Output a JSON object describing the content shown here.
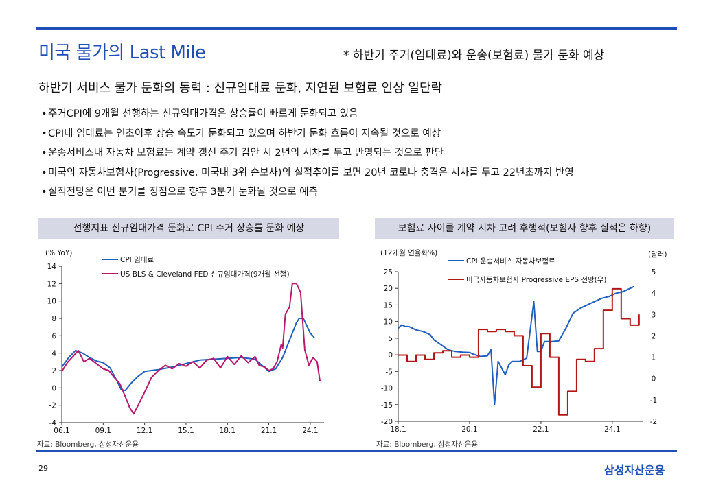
{
  "title": "미국 물가의 Last Mile",
  "subnote": "* 하반기 주거(임대료)와 운송(보험료) 물가 둔화 예상",
  "subtitle": "하반기 서비스 물가 둔화의 동력 : 신규임대료 둔화, 지연된 보험료 인상 일단락",
  "bullets": [
    "주거CPI에 9개월 선행하는 신규임대가격은  상승률이 빠르게 둔화되고 있음",
    "CPI내 임대료는 연초이후 상승 속도가 둔화되고 있으며 하반기 둔화 흐름이 지속될 것으로 예상",
    "운송서비스내 자동차 보험료는 계약 갱신 주기 감안 시 2년의 시차를 두고 반영되는 것으로 판단",
    "미국의 자동차보험사(Progressive,  미국내 3위 손보사)의 실적추이를 보면 20년 코로나 충격은 시차를 두고 22년초까지 반영",
    "실적전망은  이번 분기를 정점으로 향후 3분기 둔화될 것으로 예측"
  ],
  "left_panel": {
    "header": "선행지표 신규임대가격 둔화로 CPI 주거 상승률 둔화 예상",
    "source": "자료: Bloomberg, 삼성자산운용"
  },
  "right_panel": {
    "header": "보험료 사이클 계약 시차 고려 후행적(보험사 향후 실적은 하향)",
    "source": "자료: Bloomberg, 삼성자산운용"
  },
  "page_number": "29",
  "logo": "삼성자산운용",
  "chart_data": [
    {
      "type": "line",
      "ylabel": "(% YoY)",
      "ylim": [
        -4,
        14
      ],
      "yticks": [
        "14",
        "12",
        "10",
        "8",
        "6",
        "4",
        "2",
        "0",
        "-2",
        "-4"
      ],
      "xticks": [
        "06.1",
        "09.1",
        "12.1",
        "15.1",
        "18.1",
        "21.1",
        "24.1"
      ],
      "xrange": [
        2006.0,
        2025.0
      ],
      "colors": {
        "cpi_rent": "#1f5fbf",
        "new_rent": "#b5196e"
      },
      "series": [
        {
          "name": "CPI 임대료",
          "key": "cpi_rent",
          "x": [
            2006.0,
            2006.5,
            2007.0,
            2007.5,
            2008.0,
            2008.5,
            2009.0,
            2009.5,
            2010.0,
            2010.3,
            2010.6,
            2011.0,
            2011.5,
            2012.0,
            2012.5,
            2013.0,
            2014.0,
            2015.0,
            2016.0,
            2017.0,
            2018.0,
            2019.0,
            2020.0,
            2020.5,
            2021.0,
            2021.5,
            2022.0,
            2022.5,
            2023.0,
            2023.2,
            2023.5,
            2024.0,
            2024.3
          ],
          "values": [
            2.4,
            3.5,
            4.3,
            4.0,
            3.5,
            3.1,
            2.9,
            2.3,
            0.8,
            -0.2,
            -0.3,
            0.5,
            1.3,
            1.9,
            2.0,
            2.1,
            2.4,
            2.8,
            3.2,
            3.3,
            3.4,
            3.5,
            3.3,
            2.6,
            1.9,
            2.2,
            3.5,
            5.5,
            7.5,
            8.0,
            8.0,
            6.3,
            5.8
          ]
        },
        {
          "name": "US BLS & Cleveland FED 신규임대가격(9개월 선행)",
          "key": "new_rent",
          "x": [
            2006.0,
            2006.4,
            2006.8,
            2007.2,
            2007.6,
            2008.0,
            2008.5,
            2009.0,
            2009.4,
            2009.8,
            2010.2,
            2010.6,
            2010.9,
            2011.2,
            2011.5,
            2012.0,
            2012.5,
            2013.0,
            2013.5,
            2014.0,
            2014.5,
            2015.0,
            2015.5,
            2016.0,
            2016.5,
            2017.0,
            2017.5,
            2018.0,
            2018.5,
            2019.0,
            2019.5,
            2020.0,
            2020.3,
            2020.7,
            2021.0,
            2021.3,
            2021.6,
            2021.9,
            2022.0,
            2022.2,
            2022.5,
            2022.7,
            2023.0,
            2023.3,
            2023.6,
            2023.9,
            2024.2,
            2024.5,
            2024.7
          ],
          "values": [
            1.9,
            2.9,
            3.6,
            4.3,
            3.0,
            3.4,
            2.8,
            2.2,
            2.0,
            1.2,
            0.5,
            -1.0,
            -2.2,
            -3.0,
            -2.1,
            -0.5,
            1.2,
            2.0,
            2.6,
            2.2,
            2.8,
            2.5,
            3.0,
            2.3,
            3.2,
            3.4,
            2.3,
            3.6,
            2.7,
            3.7,
            2.9,
            3.6,
            2.6,
            2.4,
            2.0,
            2.2,
            3.0,
            5.0,
            4.6,
            8.5,
            9.3,
            12.0,
            12.0,
            11.0,
            4.4,
            2.6,
            3.5,
            3.0,
            0.8
          ]
        }
      ]
    },
    {
      "type": "line",
      "ylabel_left": "(12개월 연율화%)",
      "ylabel_right": "(달러)",
      "ylim_left": [
        -20,
        25
      ],
      "ylim_right": [
        -2,
        5
      ],
      "yticks_left": [
        "25",
        "20",
        "15",
        "10",
        "5",
        "0",
        "-5",
        "-10",
        "-15",
        "-20"
      ],
      "yticks_right": [
        "5",
        "4",
        "3",
        "2",
        "1",
        "0",
        "-1",
        "-2"
      ],
      "xticks": [
        "18.1",
        "20.1",
        "22.1",
        "24.1"
      ],
      "xrange": [
        2018.0,
        2024.85
      ],
      "colors": {
        "cpi_auto": "#1f5fbf",
        "eps": "#b01818"
      },
      "series": [
        {
          "name": "CPI 운송서비스 자동차보험료",
          "key": "cpi_auto",
          "axis": "left",
          "x": [
            2018.0,
            2018.1,
            2018.2,
            2018.3,
            2018.5,
            2018.7,
            2018.9,
            2019.0,
            2019.2,
            2019.4,
            2019.6,
            2019.8,
            2020.0,
            2020.1,
            2020.3,
            2020.5,
            2020.6,
            2020.7,
            2020.8,
            2020.9,
            2021.0,
            2021.1,
            2021.2,
            2021.4,
            2021.6,
            2021.8,
            2021.9,
            2022.0,
            2022.1,
            2022.3,
            2022.5,
            2022.7,
            2022.9,
            2023.1,
            2023.3,
            2023.5,
            2023.7,
            2023.9,
            2024.1,
            2024.3,
            2024.5,
            2024.6
          ],
          "values": [
            8,
            9,
            8.5,
            8.5,
            7.5,
            7,
            6,
            4.5,
            3,
            1.5,
            1,
            0.8,
            0.7,
            0.2,
            -0.5,
            -0.3,
            1.5,
            -15,
            -2,
            -4,
            -6,
            -3,
            -2,
            -2,
            -1,
            16,
            1,
            1,
            4,
            4,
            4.2,
            8,
            12.5,
            14,
            15,
            16,
            17,
            17.5,
            18.5,
            19,
            20,
            20.5
          ]
        },
        {
          "name": "미국자동차보험사 Progressive EPS 전망(우)",
          "key": "eps",
          "axis": "right",
          "x": [
            2018.0,
            2018.25,
            2018.5,
            2018.75,
            2019.0,
            2019.25,
            2019.5,
            2019.75,
            2020.0,
            2020.25,
            2020.5,
            2020.75,
            2021.0,
            2021.25,
            2021.5,
            2021.75,
            2022.0,
            2022.25,
            2022.5,
            2022.75,
            2023.0,
            2023.25,
            2023.5,
            2023.75,
            2024.0,
            2024.25,
            2024.5,
            2024.75
          ],
          "values": [
            1.1,
            0.8,
            1.1,
            0.9,
            1.2,
            1.3,
            1.0,
            1.1,
            1.0,
            2.3,
            2.2,
            2.3,
            2.2,
            2.0,
            0.6,
            -0.4,
            2.1,
            1.0,
            -1.7,
            -0.6,
            0.9,
            0.8,
            1.4,
            3.2,
            4.2,
            2.8,
            2.5,
            3.0
          ]
        }
      ]
    }
  ]
}
